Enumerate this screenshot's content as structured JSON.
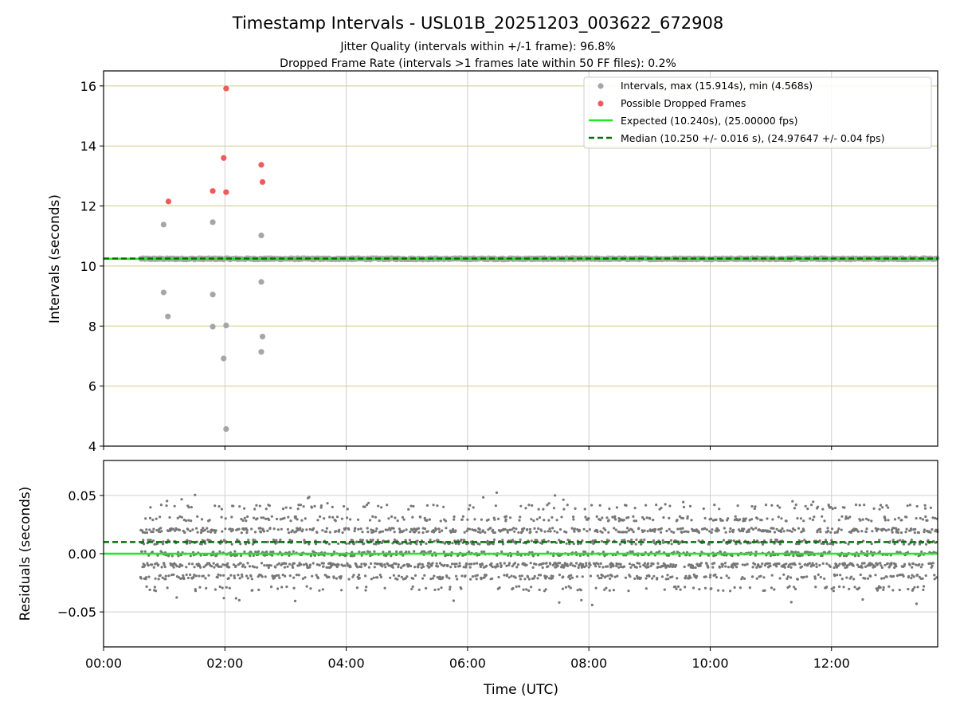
{
  "chart_data": [
    {
      "type": "scatter",
      "title": "Timestamp Intervals - USL01B_20251203_003622_672908",
      "subtitle_lines": [
        "Jitter Quality (intervals within +/-1 frame): 96.8%",
        "Dropped Frame Rate (intervals >1 frames late within 50 FF files): 0.2%"
      ],
      "ylabel": "Intervals (seconds)",
      "xlim_hours": [
        0.0,
        13.75
      ],
      "ylim": [
        4,
        16.5
      ],
      "yticks": [
        4,
        6,
        8,
        10,
        12,
        14,
        16
      ],
      "ytick_labels": [
        "4",
        "6",
        "8",
        "10",
        "12",
        "14",
        "16"
      ],
      "hgrid_lines": [
        6,
        8,
        10,
        12,
        14,
        16
      ],
      "legend_position": "top-right",
      "legend": [
        "Intervals, max (15.914s), min (4.568s)",
        "Possible Dropped Frames",
        "Expected (10.240s), (25.00000 fps)",
        "Median (10.250 +/- 0.016 s), (24.97647 +/- 0.04 fps)"
      ],
      "expected_interval": 10.24,
      "median_interval": 10.25,
      "interval_max": 15.914,
      "interval_min": 4.568,
      "series": [
        {
          "name": "Intervals (baseline)",
          "start_hour": 0.61,
          "end_hour": 13.75,
          "approx_value": 10.24
        },
        {
          "name": "Intervals (outliers)",
          "points": [
            [
              0.99,
              11.38
            ],
            [
              0.99,
              9.12
            ],
            [
              1.06,
              8.32
            ],
            [
              1.8,
              11.46
            ],
            [
              1.8,
              9.05
            ],
            [
              1.8,
              7.98
            ],
            [
              1.98,
              6.92
            ],
            [
              2.02,
              8.02
            ],
            [
              2.02,
              4.57
            ],
            [
              2.6,
              11.02
            ],
            [
              2.6,
              9.47
            ],
            [
              2.6,
              7.14
            ],
            [
              2.62,
              7.65
            ]
          ]
        },
        {
          "name": "Possible Dropped Frames",
          "points": [
            [
              1.07,
              12.15
            ],
            [
              1.8,
              12.5
            ],
            [
              1.98,
              13.6
            ],
            [
              2.02,
              15.914
            ],
            [
              2.02,
              12.46
            ],
            [
              2.6,
              13.37
            ],
            [
              2.62,
              12.8
            ]
          ]
        }
      ]
    },
    {
      "type": "scatter",
      "xlabel": "Time (UTC)",
      "ylabel": "Residuals (seconds)",
      "xlim_hours": [
        0.0,
        13.75
      ],
      "ylim": [
        -0.08,
        0.08
      ],
      "yticks": [
        -0.05,
        0.0,
        0.05
      ],
      "ytick_labels": [
        "−0.05",
        "0.00",
        "0.05"
      ],
      "xticks_hours": [
        0,
        2,
        4,
        6,
        8,
        10,
        12
      ],
      "xtick_labels": [
        "00:00",
        "02:00",
        "04:00",
        "06:00",
        "08:00",
        "10:00",
        "12:00"
      ],
      "expected_residual": 0.0,
      "median_residual": 0.01,
      "series": [
        {
          "name": "Residuals",
          "start_hour": 0.61,
          "end_hour": 13.75,
          "levels": [
            -0.03,
            -0.02,
            -0.01,
            0.0,
            0.01,
            0.02,
            0.03,
            0.04
          ],
          "approx_range": [
            -0.044,
            0.052
          ]
        }
      ]
    }
  ],
  "colors": {
    "interval": "#a6a6a6",
    "dropped": "#f25a5a",
    "expected": "#1ee81e",
    "median": "#0a6e0a",
    "residual": "#777777",
    "hgrid": "#d4c98a",
    "vgrid": "#cfcfcf"
  }
}
